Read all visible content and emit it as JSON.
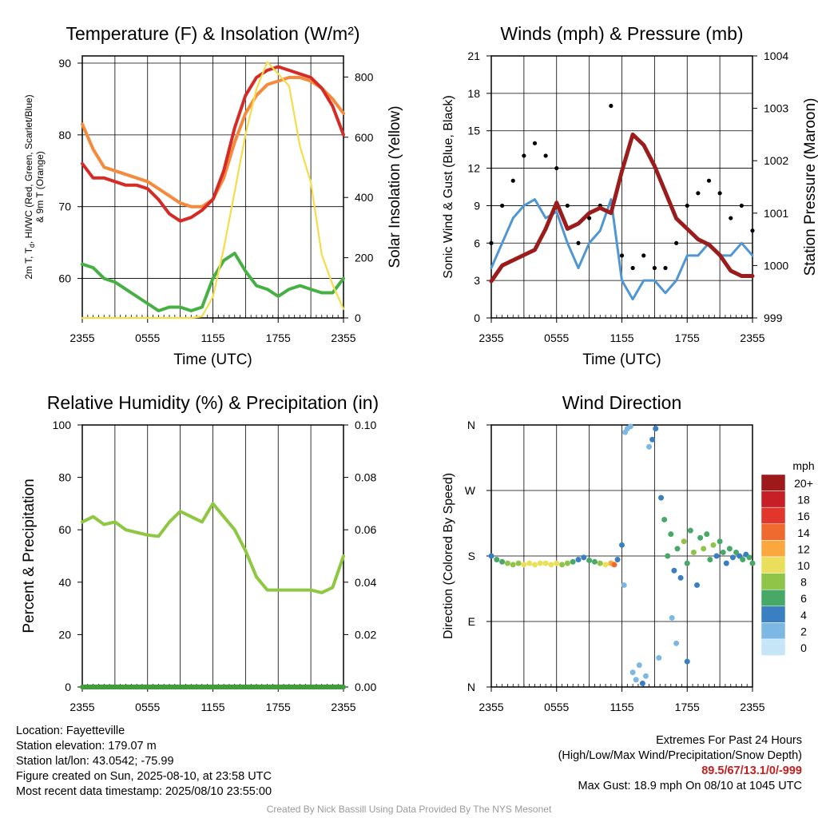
{
  "colors": {
    "t2m": "#d42b26",
    "hiwc": "#e33a2b",
    "t9m": "#f58a3c",
    "td": "#46b044",
    "solar": "#f7dc4a",
    "wind": "#4f96d3",
    "gust": "#000000",
    "pressure": "#9b1c1c",
    "rh": "#8ec741",
    "precip": "#3e9e3a"
  },
  "chart_data": [
    {
      "id": "temp",
      "type": "line",
      "title": "Temperature (F) & Insolation (W/m²)",
      "xlabel": "Time (UTC)",
      "ylabel_left": [
        "2m T, T",
        "d",
        ", HI/WC (Red, Green, Scarlet/Blue)",
        "& 9m T (Orange)"
      ],
      "ylabel_right": "Solar Insolation (Yellow)",
      "x_ticks": [
        "2355",
        "0555",
        "1155",
        "1755",
        "2355"
      ],
      "ylim_left": [
        54.5,
        91
      ],
      "y_ticks_left": [
        60,
        70,
        80,
        90
      ],
      "ylim_right": [
        0,
        870
      ],
      "y_ticks_right": [
        0,
        200,
        400,
        600,
        800
      ],
      "grid": true,
      "series": [
        {
          "key": "t9m",
          "axis": "left",
          "x": [
            0,
            1,
            2,
            3,
            4,
            5,
            6,
            7,
            8,
            9,
            10,
            11,
            12,
            13,
            14,
            15,
            16,
            17,
            18,
            19,
            20,
            21,
            22,
            23,
            24
          ],
          "values": [
            81.5,
            78,
            75.5,
            75,
            74.5,
            74,
            73.5,
            72.5,
            71.5,
            70.5,
            70,
            70,
            71,
            74,
            79,
            83,
            85.5,
            87,
            87.5,
            88,
            88,
            87.5,
            86.5,
            85,
            83
          ]
        },
        {
          "key": "t2m",
          "axis": "left",
          "x": [
            0,
            1,
            2,
            3,
            4,
            5,
            6,
            7,
            8,
            9,
            10,
            11,
            12,
            13,
            14,
            15,
            16,
            17,
            18,
            19,
            20,
            21,
            22,
            23,
            24
          ],
          "values": [
            76,
            74,
            74,
            73.5,
            73,
            73,
            72.5,
            71,
            69,
            68,
            68.5,
            69.5,
            71,
            75,
            81,
            85.5,
            88,
            89,
            89.5,
            89,
            88.5,
            88,
            86.5,
            84,
            80
          ]
        },
        {
          "key": "td",
          "axis": "left",
          "x": [
            0,
            1,
            2,
            3,
            4,
            5,
            6,
            7,
            8,
            9,
            10,
            11,
            12,
            13,
            14,
            15,
            16,
            17,
            18,
            19,
            20,
            21,
            22,
            23,
            24
          ],
          "values": [
            62,
            61.5,
            60,
            59.5,
            58.5,
            57.5,
            56.5,
            55.5,
            56,
            56,
            55.5,
            56,
            60,
            62.5,
            63.5,
            61,
            59,
            58.5,
            57.5,
            58.5,
            59,
            58.5,
            58,
            58,
            60
          ]
        },
        {
          "key": "solar",
          "axis": "right",
          "x": [
            0,
            1,
            2,
            3,
            4,
            5,
            6,
            7,
            8,
            9,
            10,
            11,
            12,
            13,
            14,
            15,
            16,
            17,
            18,
            19,
            20,
            21,
            22,
            23,
            24
          ],
          "values": [
            0,
            0,
            0,
            0,
            0,
            0,
            0,
            0,
            0,
            0,
            0,
            5,
            70,
            230,
            420,
            610,
            760,
            850,
            810,
            770,
            570,
            450,
            210,
            110,
            30
          ]
        }
      ]
    },
    {
      "id": "wind",
      "type": "line",
      "title": "Winds (mph) & Pressure (mb)",
      "xlabel": "Time (UTC)",
      "ylabel_left": "Sonic Wind & Gust (Blue, Black)",
      "ylabel_right": "Station Pressure (Maroon)",
      "x_ticks": [
        "2355",
        "0555",
        "1155",
        "1755",
        "2355"
      ],
      "ylim_left": [
        0,
        21
      ],
      "y_ticks_left": [
        0,
        3,
        6,
        9,
        12,
        15,
        18,
        21
      ],
      "ylim_right": [
        999,
        1004
      ],
      "y_ticks_right": [
        999,
        1000,
        1001,
        1002,
        1003,
        1004
      ],
      "grid": true,
      "series": [
        {
          "key": "wind",
          "axis": "left",
          "x": [
            0,
            1,
            2,
            3,
            4,
            5,
            6,
            7,
            8,
            9,
            10,
            11,
            12,
            13,
            14,
            15,
            16,
            17,
            18,
            19,
            20,
            21,
            22,
            23,
            24
          ],
          "values": [
            4,
            6,
            8,
            9,
            9.5,
            8,
            8.5,
            6,
            4,
            6,
            7,
            9.5,
            3,
            1.5,
            3,
            3,
            2,
            3,
            5,
            5,
            6,
            5,
            5,
            6,
            5
          ]
        },
        {
          "key": "gust",
          "axis": "left",
          "type": "scatter",
          "x": [
            0,
            1,
            2,
            3,
            4,
            5,
            6,
            7,
            8,
            9,
            10,
            11,
            12,
            13,
            14,
            15,
            16,
            17,
            18,
            19,
            20,
            21,
            22,
            23,
            24
          ],
          "values": [
            6,
            9,
            11,
            13,
            14,
            13,
            12,
            9,
            6,
            8,
            9,
            17,
            5,
            4,
            5,
            4,
            4,
            6,
            9,
            10,
            11,
            10,
            8,
            9,
            7
          ]
        },
        {
          "key": "pressure",
          "axis": "right",
          "x": [
            0,
            1,
            2,
            3,
            4,
            5,
            6,
            7,
            8,
            9,
            10,
            11,
            12,
            13,
            14,
            15,
            16,
            17,
            18,
            19,
            20,
            21,
            22,
            23,
            24
          ],
          "values": [
            999.7,
            1000,
            1000.1,
            1000.2,
            1000.3,
            1000.7,
            1001.2,
            1000.7,
            1000.8,
            1001,
            1001.1,
            1001,
            1001.8,
            1002.5,
            1002.3,
            1001.9,
            1001.4,
            1000.9,
            1000.7,
            1000.5,
            1000.4,
            1000.2,
            999.9,
            999.8,
            999.8
          ]
        }
      ]
    },
    {
      "id": "rh",
      "type": "line",
      "title": "Relative Humidity (%) & Precipitation (in)",
      "ylabel_left": "Percent & Precipitation",
      "x_ticks": [
        "2355",
        "0555",
        "1155",
        "1755",
        "2355"
      ],
      "ylim_left": [
        0,
        100
      ],
      "y_ticks_left": [
        0,
        20,
        40,
        60,
        80,
        100
      ],
      "ylim_right": [
        0,
        0.1
      ],
      "y_ticks_right": [
        "0.00",
        "0.02",
        "0.04",
        "0.06",
        "0.08",
        "0.10"
      ],
      "grid": true,
      "series": [
        {
          "key": "rh",
          "axis": "left",
          "x": [
            0,
            1,
            2,
            3,
            4,
            5,
            6,
            7,
            8,
            9,
            10,
            11,
            12,
            13,
            14,
            15,
            16,
            17,
            18,
            19,
            20,
            21,
            22,
            23,
            24
          ],
          "values": [
            63,
            65,
            62,
            63,
            60,
            59,
            58,
            57.5,
            63,
            67,
            65,
            63,
            70,
            65,
            60,
            52,
            42,
            37,
            37,
            37,
            37,
            37,
            36,
            38,
            50
          ]
        },
        {
          "key": "precip",
          "axis": "right",
          "x": [
            0,
            24
          ],
          "values": [
            0,
            0
          ]
        }
      ]
    },
    {
      "id": "dir",
      "type": "scatter",
      "title": "Wind Direction",
      "ylabel_left": "Direction (Colored By Speed)",
      "x_ticks": [
        "2355",
        "0555",
        "1155",
        "1755",
        "2355"
      ],
      "ylim_left": [
        0,
        360
      ],
      "y_ticks_labels": [
        "N",
        "E",
        "S",
        "W",
        "N"
      ],
      "grid": true,
      "legend": {
        "title": "mph",
        "placement": "right",
        "labels": [
          "20+",
          "18",
          "16",
          "14",
          "12",
          "10",
          "8",
          "6",
          "4",
          "2",
          "0"
        ],
        "colors": [
          "#9e1a1a",
          "#c62026",
          "#e0362b",
          "#ef6a2e",
          "#f9a73e",
          "#e9df5a",
          "#8fc449",
          "#47a867",
          "#3a7fc1",
          "#7db8e5",
          "#c6e5f7"
        ]
      },
      "points": [
        {
          "x": 0,
          "y": 180,
          "speed": 4
        },
        {
          "x": 0.5,
          "y": 175,
          "speed": 5
        },
        {
          "x": 1,
          "y": 172,
          "speed": 6
        },
        {
          "x": 1.5,
          "y": 170,
          "speed": 7
        },
        {
          "x": 2,
          "y": 168,
          "speed": 7
        },
        {
          "x": 2.5,
          "y": 170,
          "speed": 8
        },
        {
          "x": 3,
          "y": 168,
          "speed": 9
        },
        {
          "x": 3.5,
          "y": 170,
          "speed": 9
        },
        {
          "x": 4,
          "y": 168,
          "speed": 10
        },
        {
          "x": 4.5,
          "y": 170,
          "speed": 9
        },
        {
          "x": 5,
          "y": 170,
          "speed": 10
        },
        {
          "x": 5.5,
          "y": 168,
          "speed": 10
        },
        {
          "x": 6,
          "y": 170,
          "speed": 9
        },
        {
          "x": 6.5,
          "y": 168,
          "speed": 8
        },
        {
          "x": 7,
          "y": 170,
          "speed": 7
        },
        {
          "x": 7.5,
          "y": 172,
          "speed": 6
        },
        {
          "x": 8,
          "y": 175,
          "speed": 4
        },
        {
          "x": 8.5,
          "y": 178,
          "speed": 4
        },
        {
          "x": 9,
          "y": 174,
          "speed": 5
        },
        {
          "x": 9.5,
          "y": 172,
          "speed": 6
        },
        {
          "x": 10,
          "y": 170,
          "speed": 8
        },
        {
          "x": 10.5,
          "y": 168,
          "speed": 10
        },
        {
          "x": 11,
          "y": 170,
          "speed": 12
        },
        {
          "x": 11.3,
          "y": 168,
          "speed": 13
        },
        {
          "x": 11.6,
          "y": 175,
          "speed": 4
        },
        {
          "x": 12,
          "y": 195,
          "speed": 3
        },
        {
          "x": 12.2,
          "y": 140,
          "speed": 2
        },
        {
          "x": 12.3,
          "y": 350,
          "speed": 2
        },
        {
          "x": 12.5,
          "y": 355,
          "speed": 1
        },
        {
          "x": 12.8,
          "y": 358,
          "speed": 2
        },
        {
          "x": 13,
          "y": 20,
          "speed": 2
        },
        {
          "x": 13.3,
          "y": 10,
          "speed": 2
        },
        {
          "x": 13.6,
          "y": 30,
          "speed": 2
        },
        {
          "x": 13.9,
          "y": 5,
          "speed": 3
        },
        {
          "x": 14.2,
          "y": 15,
          "speed": 2
        },
        {
          "x": 14.5,
          "y": 330,
          "speed": 2
        },
        {
          "x": 14.8,
          "y": 340,
          "speed": 3
        },
        {
          "x": 15.1,
          "y": 355,
          "speed": 3
        },
        {
          "x": 15.4,
          "y": 40,
          "speed": 1
        },
        {
          "x": 15.6,
          "y": 260,
          "speed": 3
        },
        {
          "x": 15.9,
          "y": 230,
          "speed": 6
        },
        {
          "x": 16.2,
          "y": 180,
          "speed": 5
        },
        {
          "x": 16.5,
          "y": 210,
          "speed": 5
        },
        {
          "x": 16.8,
          "y": 160,
          "speed": 4
        },
        {
          "x": 17.1,
          "y": 190,
          "speed": 6
        },
        {
          "x": 17.4,
          "y": 150,
          "speed": 3
        },
        {
          "x": 17.7,
          "y": 200,
          "speed": 7
        },
        {
          "x": 18,
          "y": 170,
          "speed": 5
        },
        {
          "x": 18.3,
          "y": 215,
          "speed": 6
        },
        {
          "x": 18.6,
          "y": 185,
          "speed": 8
        },
        {
          "x": 18.9,
          "y": 140,
          "speed": 4
        },
        {
          "x": 19.2,
          "y": 205,
          "speed": 6
        },
        {
          "x": 19.5,
          "y": 190,
          "speed": 7
        },
        {
          "x": 19.8,
          "y": 210,
          "speed": 6
        },
        {
          "x": 20.1,
          "y": 175,
          "speed": 5
        },
        {
          "x": 20.4,
          "y": 195,
          "speed": 8
        },
        {
          "x": 20.7,
          "y": 180,
          "speed": 4
        },
        {
          "x": 21,
          "y": 200,
          "speed": 6
        },
        {
          "x": 21.3,
          "y": 185,
          "speed": 5
        },
        {
          "x": 21.6,
          "y": 170,
          "speed": 4
        },
        {
          "x": 21.9,
          "y": 190,
          "speed": 5
        },
        {
          "x": 22.2,
          "y": 178,
          "speed": 4
        },
        {
          "x": 22.5,
          "y": 185,
          "speed": 5
        },
        {
          "x": 22.8,
          "y": 180,
          "speed": 4
        },
        {
          "x": 23.1,
          "y": 175,
          "speed": 5
        },
        {
          "x": 23.4,
          "y": 182,
          "speed": 4
        },
        {
          "x": 23.7,
          "y": 178,
          "speed": 5
        },
        {
          "x": 24,
          "y": 170,
          "speed": 6
        },
        {
          "x": 17.0,
          "y": 60,
          "speed": 2
        },
        {
          "x": 18.0,
          "y": 35,
          "speed": 3
        },
        {
          "x": 16.6,
          "y": 95,
          "speed": 2
        }
      ]
    }
  ],
  "info": {
    "location": "Location: Fayetteville",
    "elevation": "Station elevation: 179.07 m",
    "latlon": "Station lat/lon: 43.0542; -75.99",
    "created": "Figure created on Sun, 2025-08-10, at 23:58 UTC",
    "recent": "Most recent data timestamp: 2025/08/10 23:55:00",
    "extremes_title": "Extremes For Past 24 Hours",
    "extremes_sub": "(High/Low/Max Wind/Precipitation/Snow Depth)",
    "extremes_values": "89.5/67/13.1/0/-999",
    "max_gust": "Max Gust: 18.9 mph On 08/10 at 1045 UTC"
  },
  "credit": "Created By Nick Bassill Using Data Provided By The NYS Mesonet"
}
